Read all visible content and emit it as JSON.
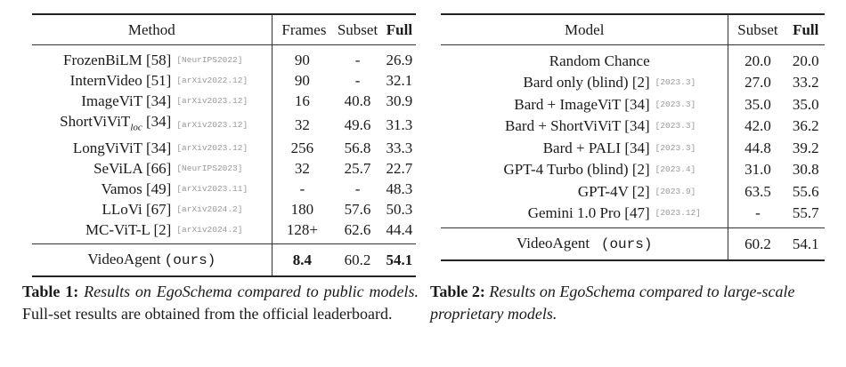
{
  "table1": {
    "headers": {
      "method": "Method",
      "frames": "Frames",
      "subset": "Subset",
      "full": "Full"
    },
    "rows": [
      {
        "method": "FrozenBiLM [58]",
        "ref": "[NeurIPS2022]",
        "frames": "90",
        "subset": "-",
        "full": "26.9"
      },
      {
        "method": "InternVideo [51]",
        "ref": "[arXiv2022.12]",
        "frames": "90",
        "subset": "-",
        "full": "32.1"
      },
      {
        "method": "ImageViT [34]",
        "ref": "[arXiv2023.12]",
        "frames": "16",
        "subset": "40.8",
        "full": "30.9"
      },
      {
        "method": "ShortViViT",
        "method_sub": "loc",
        "method_cite": "[34]",
        "ref": "[arXiv2023.12]",
        "frames": "32",
        "subset": "49.6",
        "full": "31.3"
      },
      {
        "method": "LongViViT [34]",
        "ref": "[arXiv2023.12]",
        "frames": "256",
        "subset": "56.8",
        "full": "33.3"
      },
      {
        "method": "SeViLA [66]",
        "ref": "[NeurIPS2023]",
        "frames": "32",
        "subset": "25.7",
        "full": "22.7"
      },
      {
        "method": "Vamos [49]",
        "ref": "[arXiv2023.11]",
        "frames": "-",
        "subset": "-",
        "full": "48.3"
      },
      {
        "method": "LLoVi [67]",
        "ref": "[arXiv2024.2]",
        "frames": "180",
        "subset": "57.6",
        "full": "50.3"
      },
      {
        "method": "MC-ViT-L [2]",
        "ref": "[arXiv2024.2]",
        "frames": "128+",
        "subset": "62.6",
        "full": "44.4"
      }
    ],
    "ours": {
      "method": "VideoAgent",
      "tag": "(ours)",
      "frames": "8.4",
      "subset": "60.2",
      "full": "54.1"
    },
    "caption": {
      "label": "Table 1:",
      "italic": "Results on EgoSchema compared to public models.",
      "rest": "Full-set results are obtained from the official leaderboard."
    }
  },
  "table2": {
    "headers": {
      "model": "Model",
      "subset": "Subset",
      "full": "Full"
    },
    "rows": [
      {
        "model": "Random Chance",
        "date": "",
        "subset": "20.0",
        "full": "20.0"
      },
      {
        "model": "Bard only (blind) [2]",
        "date": "[2023.3]",
        "subset": "27.0",
        "full": "33.2"
      },
      {
        "model": "Bard + ImageViT [34]",
        "date": "[2023.3]",
        "subset": "35.0",
        "full": "35.0"
      },
      {
        "model": "Bard + ShortViViT [34]",
        "date": "[2023.3]",
        "subset": "42.0",
        "full": "36.2"
      },
      {
        "model": "Bard + PALI [34]",
        "date": "[2023.3]",
        "subset": "44.8",
        "full": "39.2"
      },
      {
        "model": "GPT-4 Turbo (blind) [2]",
        "date": "[2023.4]",
        "subset": "31.0",
        "full": "30.8"
      },
      {
        "model": "GPT-4V [2]",
        "date": "[2023.9]",
        "subset": "63.5",
        "full": "55.6"
      },
      {
        "model": "Gemini 1.0 Pro [47]",
        "date": "[2023.12]",
        "subset": "-",
        "full": "55.7"
      }
    ],
    "ours": {
      "model": "VideoAgent",
      "tag": "(ours)",
      "subset": "60.2",
      "full": "54.1"
    },
    "caption": {
      "label": "Table 2:",
      "italic": "Results on EgoSchema compared to large-scale proprietary models."
    }
  }
}
